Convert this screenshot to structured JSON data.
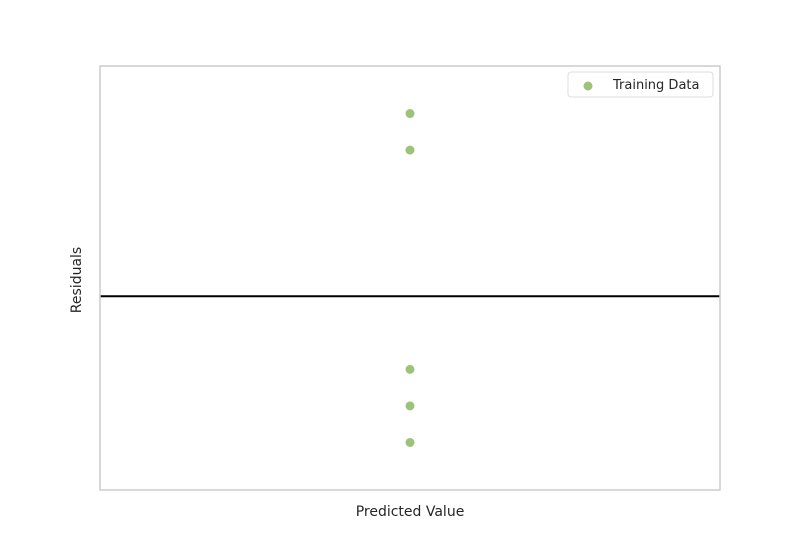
{
  "chart_data": {
    "type": "scatter",
    "title": "",
    "xlabel": "Predicted Value",
    "ylabel": "Residuals",
    "xlim": [
      -1,
      1
    ],
    "ylim": [
      -2.65,
      3.15
    ],
    "x_ticks_shown": false,
    "y_ticks_shown": false,
    "grid": false,
    "legend_position": "top-right",
    "reference_line": {
      "y": 0,
      "color": "#000000"
    },
    "series": [
      {
        "name": "Training Data",
        "color": "#9DC37A",
        "points": [
          {
            "x": 0,
            "y": 2.5
          },
          {
            "x": 0,
            "y": 2.0
          },
          {
            "x": 0,
            "y": -1.0
          },
          {
            "x": 0,
            "y": -1.5
          },
          {
            "x": 0,
            "y": -2.0
          }
        ]
      }
    ]
  }
}
